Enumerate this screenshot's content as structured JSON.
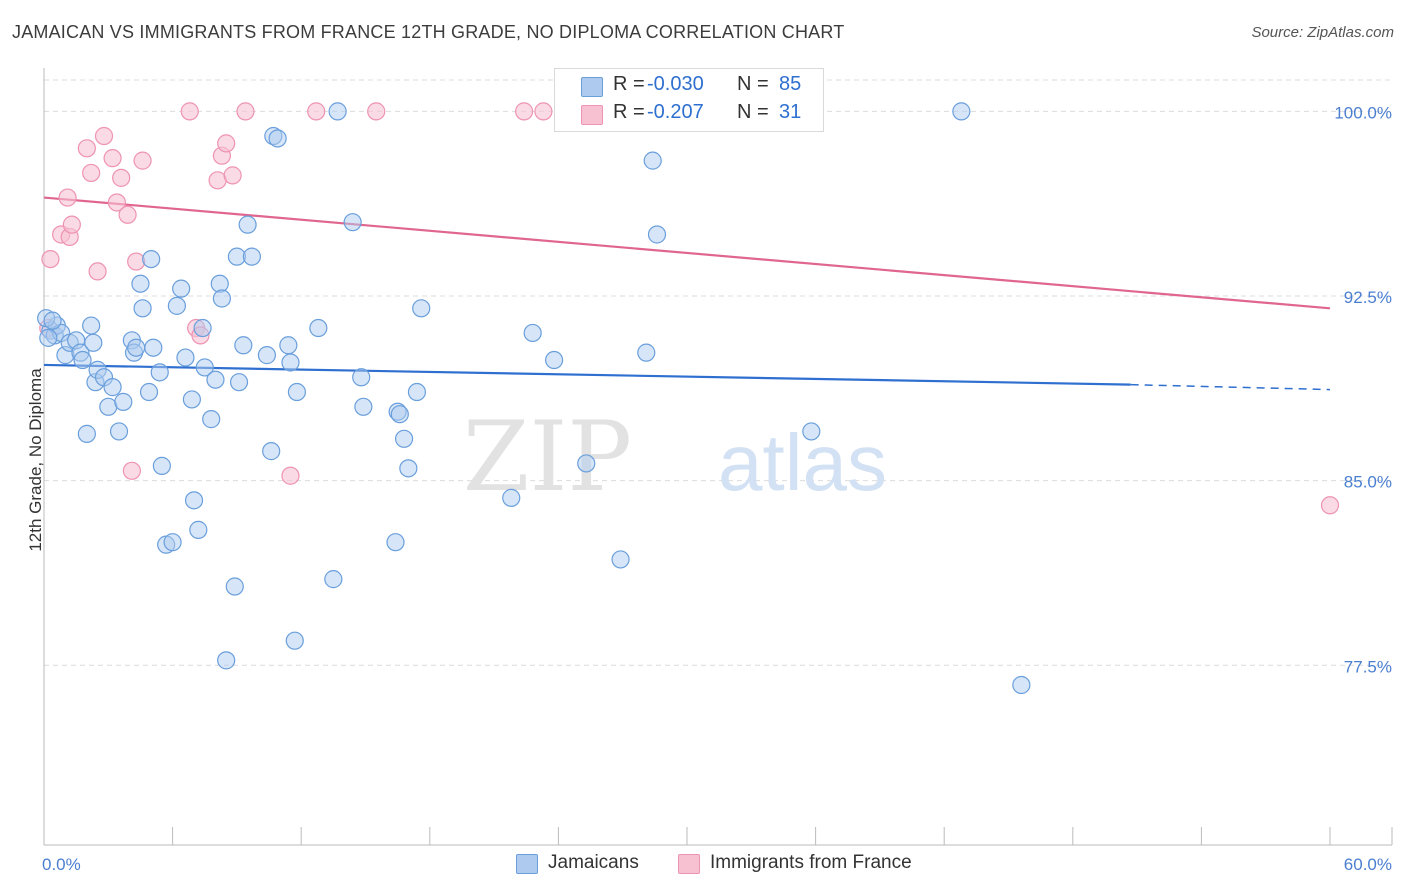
{
  "title": "JAMAICAN VS IMMIGRANTS FROM FRANCE 12TH GRADE, NO DIPLOMA CORRELATION CHART",
  "source": "Source: ZipAtlas.com",
  "watermark": {
    "zip": "ZIP",
    "atlas": "atlas"
  },
  "colors": {
    "blue_fill": "#aecbef",
    "blue_stroke": "#6a9fdc",
    "blue_line": "#2e6fd0",
    "pink_fill": "#f7c1d2",
    "pink_stroke": "#ee93b1",
    "pink_line": "#e0668f",
    "tick_text": "#4a7fd0",
    "grid": "#dcdcdc"
  },
  "legend": {
    "rows": [
      {
        "r_label": "R =",
        "r_value": "-0.030",
        "n_label": "N =",
        "n_value": "85",
        "series": "blue"
      },
      {
        "r_label": "R =",
        "r_value": "-0.207",
        "n_label": "N =",
        "n_value": "31",
        "series": "pink"
      }
    ]
  },
  "bottom_legend": [
    {
      "label": "Jamaicans",
      "series": "blue"
    },
    {
      "label": "Immigrants from France",
      "series": "pink"
    }
  ],
  "chart_data": {
    "type": "scatter",
    "title": "JAMAICAN VS IMMIGRANTS FROM FRANCE 12TH GRADE, NO DIPLOMA CORRELATION CHART",
    "xlabel": "",
    "ylabel": "12th Grade, No Diploma",
    "xlim": [
      0,
      60
    ],
    "ylim": [
      70.2,
      101.6
    ],
    "x_tick_labels": [
      {
        "value": 0,
        "label": "0.0%"
      },
      {
        "value": 60,
        "label": "60.0%"
      }
    ],
    "y_tick_labels": [
      {
        "value": 100.0,
        "label": "100.0%"
      },
      {
        "value": 92.5,
        "label": "92.5%"
      },
      {
        "value": 85.0,
        "label": "85.0%"
      },
      {
        "value": 77.5,
        "label": "77.5%"
      }
    ],
    "grid": true,
    "legend_position": "top-center",
    "series": [
      {
        "name": "Jamaicans",
        "color": "#aecbef",
        "trend": {
          "x": [
            0,
            50.7
          ],
          "y": [
            89.7,
            88.9
          ],
          "dashed_to": [
            60,
            88.7
          ]
        },
        "points": [
          [
            0.3,
            91.1
          ],
          [
            0.5,
            90.9
          ],
          [
            0.6,
            91.3
          ],
          [
            0.8,
            91.0
          ],
          [
            1.0,
            90.1
          ],
          [
            1.2,
            90.6
          ],
          [
            1.5,
            90.7
          ],
          [
            1.7,
            90.2
          ],
          [
            1.8,
            89.9
          ],
          [
            2.0,
            86.9
          ],
          [
            2.2,
            91.3
          ],
          [
            2.3,
            90.6
          ],
          [
            2.4,
            89.0
          ],
          [
            2.5,
            89.5
          ],
          [
            2.8,
            89.2
          ],
          [
            3.0,
            88.0
          ],
          [
            3.2,
            88.8
          ],
          [
            3.5,
            87.0
          ],
          [
            3.7,
            88.2
          ],
          [
            4.1,
            90.7
          ],
          [
            4.2,
            90.2
          ],
          [
            4.3,
            90.4
          ],
          [
            4.5,
            93.0
          ],
          [
            4.6,
            92.0
          ],
          [
            4.9,
            88.6
          ],
          [
            5.0,
            94.0
          ],
          [
            5.1,
            90.4
          ],
          [
            5.4,
            89.4
          ],
          [
            5.5,
            85.6
          ],
          [
            5.7,
            82.4
          ],
          [
            6.0,
            82.5
          ],
          [
            6.2,
            92.1
          ],
          [
            6.4,
            92.8
          ],
          [
            6.6,
            90.0
          ],
          [
            6.9,
            88.3
          ],
          [
            7.0,
            84.2
          ],
          [
            7.2,
            83.0
          ],
          [
            7.4,
            91.2
          ],
          [
            7.5,
            89.6
          ],
          [
            7.8,
            87.5
          ],
          [
            8.0,
            89.1
          ],
          [
            8.2,
            93.0
          ],
          [
            8.3,
            92.4
          ],
          [
            8.5,
            77.7
          ],
          [
            8.9,
            80.7
          ],
          [
            9.0,
            94.1
          ],
          [
            9.1,
            89.0
          ],
          [
            9.3,
            90.5
          ],
          [
            9.5,
            95.4
          ],
          [
            9.7,
            94.1
          ],
          [
            10.4,
            90.1
          ],
          [
            10.6,
            86.2
          ],
          [
            10.7,
            99.0
          ],
          [
            10.9,
            98.9
          ],
          [
            11.4,
            90.5
          ],
          [
            11.5,
            89.8
          ],
          [
            11.7,
            78.5
          ],
          [
            11.8,
            88.6
          ],
          [
            12.8,
            91.2
          ],
          [
            13.5,
            81.0
          ],
          [
            13.7,
            100.0
          ],
          [
            14.4,
            95.5
          ],
          [
            14.8,
            89.2
          ],
          [
            14.9,
            88.0
          ],
          [
            16.4,
            82.5
          ],
          [
            16.5,
            87.8
          ],
          [
            16.6,
            87.7
          ],
          [
            16.8,
            86.7
          ],
          [
            17.0,
            85.5
          ],
          [
            17.4,
            88.6
          ],
          [
            17.6,
            92.0
          ],
          [
            21.8,
            84.3
          ],
          [
            22.8,
            91.0
          ],
          [
            23.8,
            89.9
          ],
          [
            25.3,
            85.7
          ],
          [
            26.9,
            81.8
          ],
          [
            28.1,
            90.2
          ],
          [
            28.4,
            98.0
          ],
          [
            28.6,
            95.0
          ],
          [
            35.8,
            87.0
          ],
          [
            42.8,
            100.0
          ],
          [
            45.6,
            76.7
          ],
          [
            0.1,
            91.6
          ],
          [
            0.2,
            90.8
          ],
          [
            0.4,
            91.5
          ]
        ]
      },
      {
        "name": "Immigrants from France",
        "color": "#f7c1d2",
        "trend": {
          "x": [
            0,
            60
          ],
          "y": [
            96.5,
            92.0
          ]
        },
        "points": [
          [
            0.2,
            91.2
          ],
          [
            0.3,
            94.0
          ],
          [
            0.8,
            95.0
          ],
          [
            1.1,
            96.5
          ],
          [
            1.2,
            94.9
          ],
          [
            1.3,
            95.4
          ],
          [
            2.0,
            98.5
          ],
          [
            2.2,
            97.5
          ],
          [
            2.5,
            93.5
          ],
          [
            2.8,
            99.0
          ],
          [
            3.2,
            98.1
          ],
          [
            3.4,
            96.3
          ],
          [
            3.6,
            97.3
          ],
          [
            3.9,
            95.8
          ],
          [
            4.1,
            85.4
          ],
          [
            4.3,
            93.9
          ],
          [
            4.6,
            98.0
          ],
          [
            6.8,
            100.0
          ],
          [
            7.1,
            91.2
          ],
          [
            7.3,
            90.9
          ],
          [
            8.1,
            97.2
          ],
          [
            8.3,
            98.2
          ],
          [
            8.5,
            98.7
          ],
          [
            8.8,
            97.4
          ],
          [
            9.4,
            100.0
          ],
          [
            11.5,
            85.2
          ],
          [
            12.7,
            100.0
          ],
          [
            15.5,
            100.0
          ],
          [
            22.4,
            100.0
          ],
          [
            23.3,
            100.0
          ],
          [
            60.0,
            84.0
          ]
        ]
      }
    ]
  }
}
